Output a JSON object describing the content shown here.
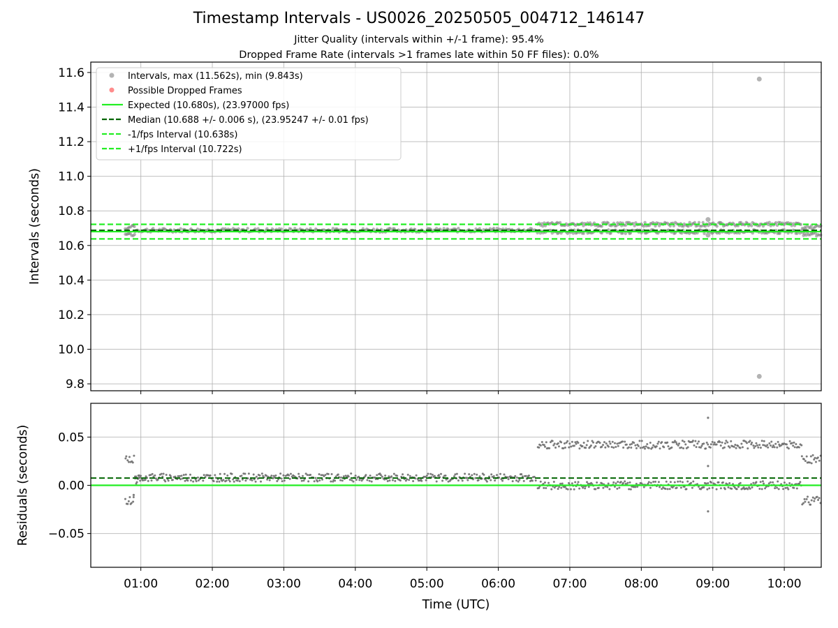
{
  "title": "Timestamp Intervals - US0026_20250505_004712_146147",
  "subtitle1": "Jitter Quality (intervals within +/-1 frame): 95.4%",
  "subtitle2": "Dropped Frame Rate (intervals >1 frames late within 50 FF files): 0.0%",
  "colors": {
    "intervals": "#808080",
    "dropped": "#ff4040",
    "expected": "#22ee22",
    "median": "#006400",
    "fps_band": "#22ee22",
    "residuals": "#6e6e6e"
  },
  "chart_data": [
    {
      "type": "scatter",
      "ylabel": "Intervals (seconds)",
      "xlim": [
        "00:18",
        "10:31"
      ],
      "ylim": [
        9.76,
        11.66
      ],
      "yticks": [
        9.8,
        10.0,
        10.2,
        10.4,
        10.6,
        10.8,
        11.0,
        11.2,
        11.4,
        11.6
      ],
      "ytick_labels": [
        "9.8",
        "10.0",
        "10.2",
        "10.4",
        "10.6",
        "10.8",
        "11.0",
        "11.2",
        "11.4",
        "11.6"
      ],
      "grid": true,
      "legend_position": "top-left",
      "legend": [
        {
          "label": "Intervals, max (11.562s), min (9.843s)",
          "marker": "dot",
          "color": "#808080"
        },
        {
          "label": "Possible Dropped Frames",
          "marker": "dot",
          "color": "#ff4040"
        },
        {
          "label": "Expected (10.680s), (23.97000 fps)",
          "marker": "solid",
          "color": "#22ee22"
        },
        {
          "label": "Median (10.688 +/- 0.006 s), (23.95247 +/- 0.01 fps)",
          "marker": "dashed",
          "color": "#006400"
        },
        {
          "label": "-1/fps Interval (10.638s)",
          "marker": "dashed",
          "color": "#22ee22"
        },
        {
          "label": "+1/fps Interval (10.722s)",
          "marker": "dashed",
          "color": "#22ee22"
        }
      ],
      "hlines": {
        "expected": 10.68,
        "median": 10.688,
        "minus_fps": 10.638,
        "plus_fps": 10.722
      },
      "outliers": [
        {
          "x": "09:39",
          "y": 11.562
        },
        {
          "x": "09:39",
          "y": 9.843
        },
        {
          "x": "08:56",
          "y": 10.75
        },
        {
          "x": "08:56",
          "y": 10.66
        }
      ],
      "segments": [
        {
          "start": "00:47",
          "end": "00:55",
          "levels": [
            10.665,
            10.705
          ]
        },
        {
          "start": "00:55",
          "end": "06:32",
          "levels": [
            10.688
          ]
        },
        {
          "start": "06:33",
          "end": "10:15",
          "levels": [
            10.68,
            10.722
          ]
        },
        {
          "start": "10:15",
          "end": "10:31",
          "levels": [
            10.665,
            10.705
          ]
        }
      ]
    },
    {
      "type": "scatter",
      "ylabel": "Residuals (seconds)",
      "xlabel": "Time (UTC)",
      "xlim": [
        "00:18",
        "10:31"
      ],
      "ylim": [
        -0.085,
        0.085
      ],
      "yticks": [
        -0.05,
        0.0,
        0.05
      ],
      "ytick_labels": [
        "−0.05",
        "0.00",
        "0.05"
      ],
      "xticks": [
        "01:00",
        "02:00",
        "03:00",
        "04:00",
        "05:00",
        "06:00",
        "07:00",
        "08:00",
        "09:00",
        "10:00"
      ],
      "grid": true,
      "hlines": {
        "expected": 0.0,
        "median": 0.0075
      },
      "outliers": [
        {
          "x": "08:56",
          "y": 0.07
        },
        {
          "x": "08:56",
          "y": -0.027
        },
        {
          "x": "08:56",
          "y": 0.02
        },
        {
          "x": "00:54",
          "y": -0.01
        }
      ],
      "segments": [
        {
          "start": "00:47",
          "end": "00:55",
          "levels": [
            -0.016,
            0.027
          ]
        },
        {
          "start": "00:55",
          "end": "01:00",
          "levels": [
            0.005,
            0.009
          ]
        },
        {
          "start": "01:00",
          "end": "06:32",
          "levels": [
            0.008
          ]
        },
        {
          "start": "06:33",
          "end": "10:15",
          "levels": [
            0.0,
            0.042
          ]
        },
        {
          "start": "10:15",
          "end": "10:31",
          "levels": [
            -0.016,
            0.027
          ]
        }
      ]
    }
  ]
}
